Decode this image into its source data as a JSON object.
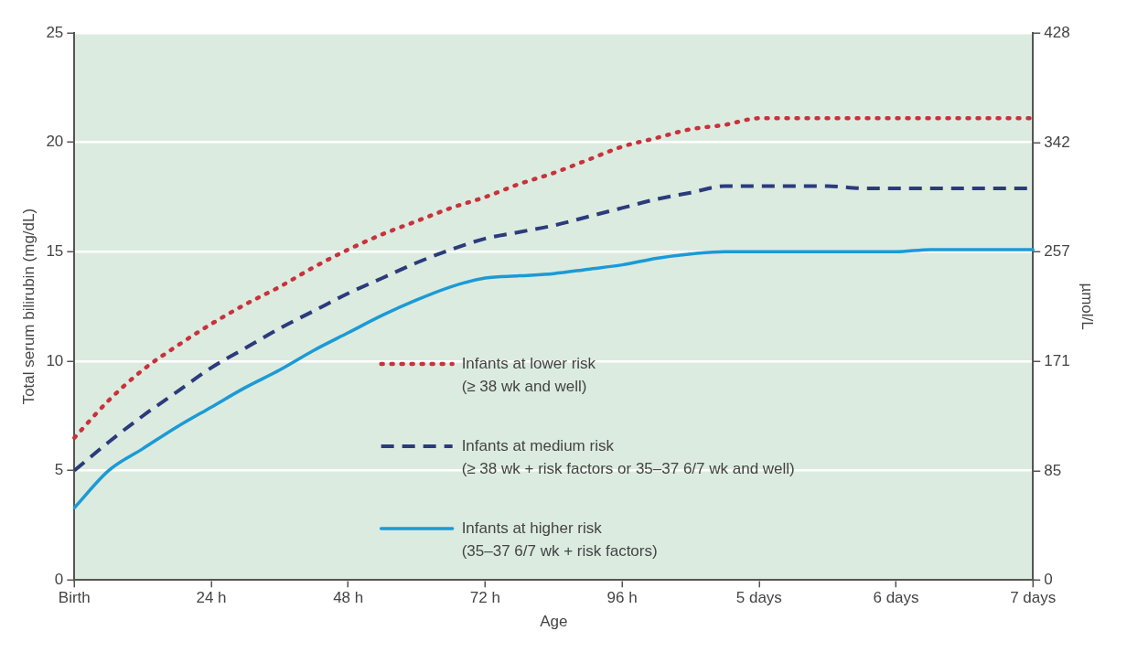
{
  "chart_data": {
    "type": "line",
    "xlabel": "Age",
    "ylabel": "Total serum bilirubin (mg/dL)",
    "y2label": "µmol/L",
    "categories": [
      "Birth",
      null,
      null,
      null,
      "24 h",
      null,
      null,
      null,
      "48 h",
      null,
      null,
      null,
      "72 h",
      null,
      null,
      null,
      "96 h",
      null,
      null,
      null,
      "5 days",
      null,
      null,
      null,
      "6 days",
      null,
      null,
      null,
      "7 days"
    ],
    "ylim": [
      0,
      25
    ],
    "yticks": [
      0,
      5,
      10,
      15,
      20,
      25
    ],
    "y2lim": [
      0,
      428
    ],
    "y2ticks": [
      0,
      85,
      171,
      257,
      342,
      428
    ],
    "grid": "y",
    "legend": "bottom",
    "marker": "none",
    "series": [
      {
        "name": "Infants at lower risk\n(≥ 38 wk and well)",
        "color": "#c8323c",
        "line_style": "dotted",
        "values": [
          6.5,
          8.2,
          9.6,
          10.7,
          11.7,
          12.6,
          13.4,
          14.3,
          15.1,
          15.8,
          16.4,
          17.0,
          17.5,
          18.1,
          18.6,
          19.2,
          19.8,
          20.2,
          20.6,
          20.8,
          21.1,
          21.1,
          21.1,
          21.1,
          21.1,
          21.1,
          21.1,
          21.1,
          21.1
        ]
      },
      {
        "name": "Infants at medium risk\n(≥ 38 wk + risk factors or 35–37 6/7 wk and well)",
        "color": "#2b3b7c",
        "line_style": "dashed",
        "values": [
          5.0,
          6.3,
          7.5,
          8.6,
          9.7,
          10.6,
          11.5,
          12.3,
          13.1,
          13.8,
          14.5,
          15.1,
          15.6,
          15.9,
          16.2,
          16.6,
          17.0,
          17.4,
          17.7,
          18.0,
          18.0,
          18.0,
          18.0,
          17.9,
          17.9,
          17.9,
          17.9,
          17.9,
          17.9
        ]
      },
      {
        "name": "Infants at higher risk\n(35–37 6/7 wk + risk factors)",
        "color": "#1b9ad6",
        "line_style": "solid",
        "values": [
          3.3,
          5.0,
          6.0,
          7.0,
          7.9,
          8.8,
          9.6,
          10.5,
          11.3,
          12.1,
          12.8,
          13.4,
          13.8,
          13.9,
          14.0,
          14.2,
          14.4,
          14.7,
          14.9,
          15.0,
          15.0,
          15.0,
          15.0,
          15.0,
          15.0,
          15.1,
          15.1,
          15.1,
          15.1
        ]
      }
    ]
  }
}
